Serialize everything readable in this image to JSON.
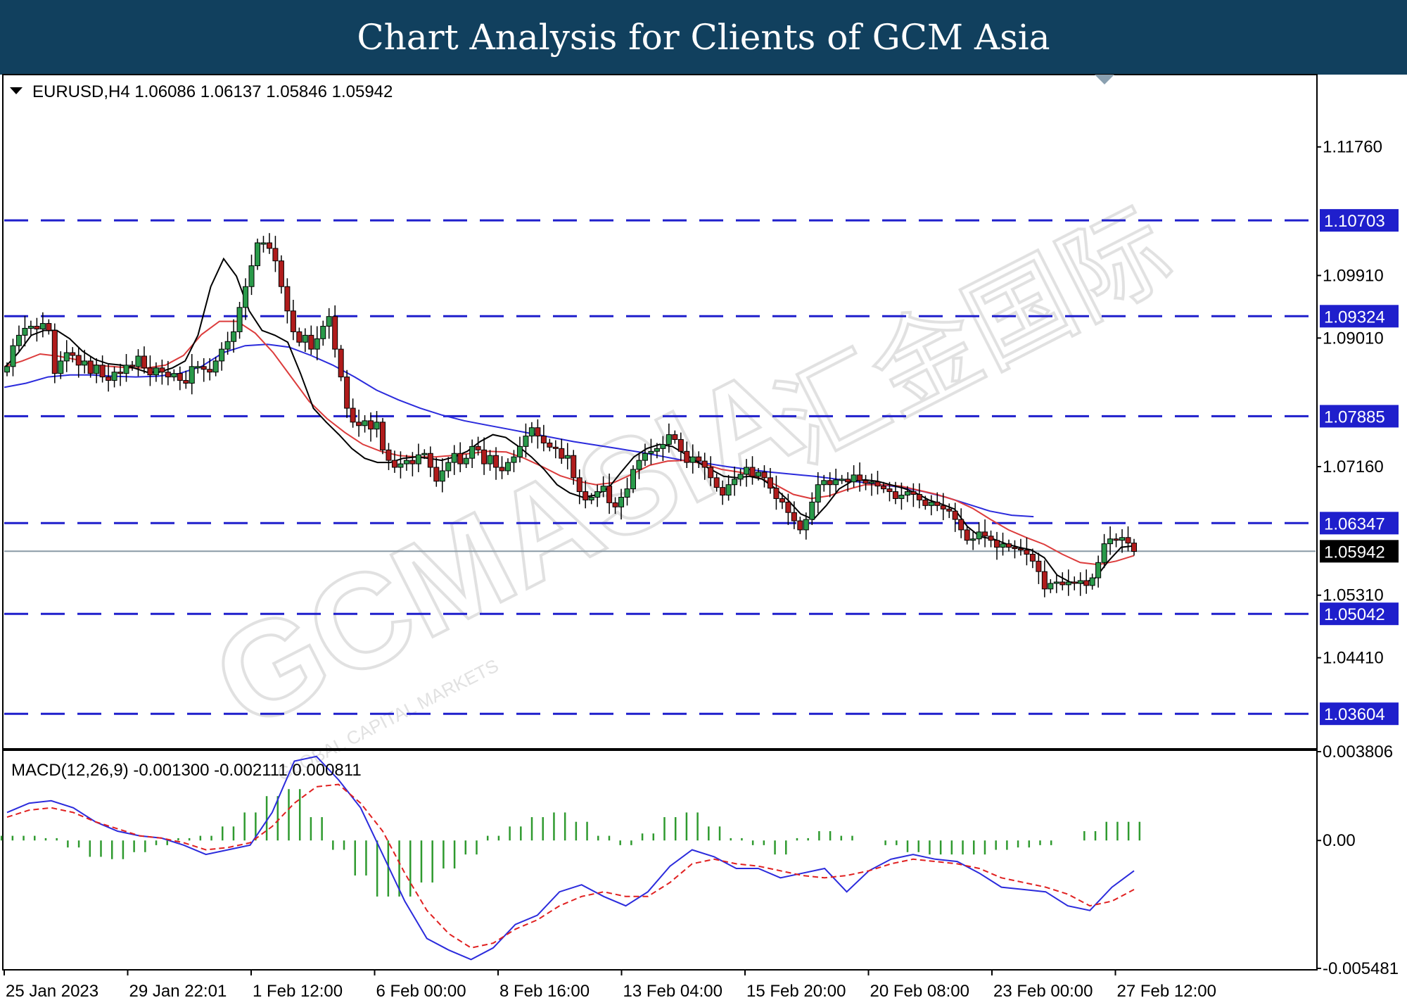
{
  "header": {
    "title": "Chart Analysis for Clients of GCM Asia"
  },
  "colors": {
    "header_bg": "#11405e",
    "level_line": "#1f1fcc",
    "level_tag": "#1f1fcc",
    "current_tag": "#000000",
    "ma_fast": "#000000",
    "ma_mid": "#dc3c3c",
    "ma_slow": "#2b2bdc",
    "macd_line": "#2b2bdc",
    "signal_line": "#e02020",
    "hist_bar": "#2f9a2f",
    "bull_candle": "#2a9a4a",
    "bear_candle": "#b01c1c"
  },
  "watermark": {
    "brand": "GCMASIA",
    "cn": "汇金国际",
    "sub": "GLOBAL CAPITAL MARKETS"
  },
  "chart_data": [
    {
      "type": "candlestick",
      "symbol_info": "EURUSD,H4  1.06086 1.06137 1.05846 1.05942",
      "ylim": [
        1.0312,
        1.1278
      ],
      "y_ticks": [
        "1.11760",
        "1.09910",
        "1.09010",
        "1.07160",
        "1.05310",
        "1.04410"
      ],
      "levels": [
        1.10703,
        1.09324,
        1.07885,
        1.06347,
        1.05042,
        1.03604
      ],
      "level_labels": [
        "1.10703",
        "1.09324",
        "1.07885",
        "1.06347",
        "1.05042",
        "1.03604"
      ],
      "current_price": 1.05942,
      "current_label": "1.05942",
      "x_labels": [
        "25 Jan 2023",
        "29 Jan 22:01",
        "1 Feb 12:00",
        "6 Feb 00:00",
        "8 Feb 16:00",
        "13 Feb 04:00",
        "15 Feb 20:00",
        "20 Feb 08:00",
        "23 Feb 00:00",
        "27 Feb 12:00"
      ],
      "close_series": [
        1.086,
        1.089,
        1.0905,
        1.0915,
        1.0918,
        1.0914,
        1.0922,
        1.0912,
        1.085,
        1.0868,
        1.088,
        1.0876,
        1.0862,
        1.0868,
        1.085,
        1.0862,
        1.0845,
        1.084,
        1.0852,
        1.085,
        1.0862,
        1.086,
        1.0875,
        1.0858,
        1.0848,
        1.0858,
        1.0852,
        1.0845,
        1.085,
        1.084,
        1.0836,
        1.086,
        1.086,
        1.0856,
        1.0852,
        1.0868,
        1.0885,
        1.0896,
        1.091,
        1.0945,
        1.0975,
        1.1005,
        1.1038,
        1.1038,
        1.103,
        1.1012,
        1.0975,
        1.094,
        1.091,
        1.0895,
        1.0905,
        1.0885,
        1.09,
        1.0918,
        1.0932,
        1.0885,
        1.0845,
        1.08,
        1.078,
        1.0775,
        1.0782,
        1.077,
        1.078,
        1.074,
        1.0725,
        1.0715,
        1.072,
        1.0725,
        1.072,
        1.0733,
        1.0735,
        1.0715,
        1.0695,
        1.071,
        1.0722,
        1.0735,
        1.072,
        1.0728,
        1.0745,
        1.074,
        1.072,
        1.0732,
        1.0715,
        1.071,
        1.0722,
        1.073,
        1.0745,
        1.076,
        1.0772,
        1.076,
        1.075,
        1.0744,
        1.0742,
        1.0728,
        1.0732,
        1.07,
        1.068,
        1.0668,
        1.0672,
        1.068,
        1.0688,
        1.0664,
        1.0658,
        1.0672,
        1.0684,
        1.0712,
        1.0725,
        1.0735,
        1.0738,
        1.0742,
        1.0748,
        1.0762,
        1.0755,
        1.0738,
        1.0722,
        1.073,
        1.0724,
        1.0715,
        1.07,
        1.0686,
        1.0675,
        1.069,
        1.0698,
        1.0705,
        1.0715,
        1.0702,
        1.0708,
        1.07,
        1.0685,
        1.067,
        1.0665,
        1.065,
        1.0638,
        1.0625,
        1.064,
        1.0665,
        1.069,
        1.0696,
        1.069,
        1.0697,
        1.0698,
        1.0694,
        1.0704,
        1.0696,
        1.0692,
        1.0694,
        1.0688,
        1.0684,
        1.068,
        1.067,
        1.0675,
        1.068,
        1.0676,
        1.0668,
        1.066,
        1.0665,
        1.066,
        1.0655,
        1.0652,
        1.064,
        1.0625,
        1.061,
        1.0612,
        1.0622,
        1.0616,
        1.061,
        1.06,
        1.0605,
        1.06,
        1.0598,
        1.0596,
        1.059,
        1.058,
        1.0565,
        1.054,
        1.0548,
        1.055,
        1.0546,
        1.055,
        1.0548,
        1.0552,
        1.0545,
        1.0556,
        1.0578,
        1.0605,
        1.0612,
        1.061,
        1.0614,
        1.0606,
        1.0594
      ],
      "ma_fast": [
        1.086,
        1.088,
        1.0905,
        1.0912,
        1.0912,
        1.09,
        1.0882,
        1.087,
        1.0864,
        1.0862,
        1.0858,
        1.0852,
        1.0852,
        1.0858,
        1.0868,
        1.0905,
        1.0975,
        1.1015,
        1.099,
        1.094,
        1.0912,
        1.0905,
        1.0895,
        1.085,
        1.08,
        1.078,
        1.0762,
        1.0742,
        1.0728,
        1.0722,
        1.0722,
        1.0728,
        1.073,
        1.0728,
        1.0725,
        1.073,
        1.0738,
        1.0752,
        1.0762,
        1.0758,
        1.0745,
        1.073,
        1.0712,
        1.069,
        1.0678,
        1.0672,
        1.0675,
        1.0685,
        1.0708,
        1.073,
        1.0742,
        1.0748,
        1.0745,
        1.0734,
        1.0722,
        1.0712,
        1.0702,
        1.07,
        1.0702,
        1.0698,
        1.0685,
        1.0668,
        1.0648,
        1.064,
        1.066,
        1.0684,
        1.0695,
        1.0697,
        1.0695,
        1.069,
        1.0685,
        1.0678,
        1.0668,
        1.0662,
        1.0655,
        1.063,
        1.0615,
        1.0612,
        1.0605,
        1.06,
        1.0596,
        1.0585,
        1.056,
        1.055,
        1.0548,
        1.0556,
        1.058,
        1.06,
        1.0602
      ],
      "ma_mid": [
        1.086,
        1.0868,
        1.0878,
        1.0875,
        1.087,
        1.0862,
        1.086,
        1.0858,
        1.0858,
        1.0862,
        1.0876,
        1.0906,
        1.0925,
        1.0925,
        1.0908,
        1.088,
        1.0845,
        1.081,
        1.0785,
        1.0765,
        1.0748,
        1.0738,
        1.0732,
        1.073,
        1.073,
        1.0732,
        1.0735,
        1.0738,
        1.0737,
        1.0728,
        1.0716,
        1.0703,
        1.0695,
        1.069,
        1.0693,
        1.0705,
        1.0718,
        1.0724,
        1.0725,
        1.072,
        1.0712,
        1.0708,
        1.0701,
        1.069,
        1.0676,
        1.067,
        1.0674,
        1.0683,
        1.069,
        1.069,
        1.0688,
        1.0682,
        1.0676,
        1.0668,
        1.0656,
        1.064,
        1.0625,
        1.0614,
        1.0604,
        1.059,
        1.0578,
        1.0575,
        1.058,
        1.0588
      ],
      "ma_slow": [
        1.083,
        1.0836,
        1.0845,
        1.0848,
        1.0848,
        1.0846,
        1.0845,
        1.0846,
        1.085,
        1.086,
        1.088,
        1.089,
        1.0892,
        1.0888,
        1.0876,
        1.0862,
        1.0845,
        1.0826,
        1.0812,
        1.08,
        1.079,
        1.0782,
        1.0776,
        1.077,
        1.0764,
        1.0758,
        1.0752,
        1.0747,
        1.0742,
        1.0737,
        1.0731,
        1.0725,
        1.0721,
        1.0716,
        1.0712,
        1.0708,
        1.0705,
        1.0702,
        1.0698,
        1.0694,
        1.069,
        1.0686,
        1.068,
        1.0672,
        1.0662,
        1.0652,
        1.0646,
        1.0644
      ],
      "ma_slow_end_x_frac": 0.785
    },
    {
      "type": "macd",
      "title": "MACD(12,26,9) -0.001300 -0.002111 0.000811",
      "ylim": [
        -0.005481,
        0.003806
      ],
      "y_ticks": [
        "0.003806",
        "0.00",
        "-0.005481"
      ],
      "macd": [
        0.0012,
        0.0016,
        0.0017,
        0.0014,
        0.0008,
        0.0004,
        0.0002,
        0.0001,
        -0.0002,
        -0.0006,
        -0.0004,
        -0.0002,
        0.0012,
        0.0034,
        0.0036,
        0.0026,
        0.0014,
        -0.0006,
        -0.0026,
        -0.0042,
        -0.0047,
        -0.0051,
        -0.0046,
        -0.0036,
        -0.0032,
        -0.0022,
        -0.0019,
        -0.0024,
        -0.0028,
        -0.0022,
        -0.0011,
        -0.0004,
        -0.0007,
        -0.0012,
        -0.0012,
        -0.0016,
        -0.0014,
        -0.0012,
        -0.0022,
        -0.0013,
        -0.0008,
        -0.0006,
        -0.0008,
        -0.0009,
        -0.0014,
        -0.002,
        -0.0021,
        -0.0022,
        -0.0028,
        -0.003,
        -0.002,
        -0.0013
      ],
      "signal": [
        0.001,
        0.0013,
        0.0014,
        0.0012,
        0.0008,
        0.0005,
        0.0002,
        0.0001,
        -0.0001,
        -0.0004,
        -0.0003,
        -0.0001,
        0.0006,
        0.0016,
        0.0023,
        0.0024,
        0.0016,
        0.0004,
        -0.0014,
        -0.003,
        -0.004,
        -0.0046,
        -0.0044,
        -0.0038,
        -0.0034,
        -0.0028,
        -0.0024,
        -0.0022,
        -0.0024,
        -0.0024,
        -0.0018,
        -0.001,
        -0.0008,
        -0.001,
        -0.0011,
        -0.0013,
        -0.0015,
        -0.0016,
        -0.0015,
        -0.0013,
        -0.001,
        -0.0008,
        -0.0009,
        -0.001,
        -0.0012,
        -0.0016,
        -0.0018,
        -0.002,
        -0.0023,
        -0.0028,
        -0.0026,
        -0.0021
      ],
      "histogram": [
        0.0002,
        0.0002,
        0.0001,
        -0.0003,
        -0.0007,
        -0.0008,
        -0.0005,
        -0.0002,
        0.0001,
        0.0002,
        0.0006,
        0.0012,
        0.0019,
        0.0022,
        0.001,
        -0.0004,
        -0.0015,
        -0.0024,
        -0.0024,
        -0.0018,
        -0.0012,
        -0.0006,
        0.0002,
        0.0006,
        0.001,
        0.0012,
        0.0008,
        0.0002,
        -0.0002,
        0.0003,
        0.001,
        0.0012,
        0.0006,
        0.0001,
        -0.0002,
        -0.0006,
        0.0001,
        0.0004,
        0.0002,
        0.0,
        -0.0002,
        -0.0005,
        -0.0006,
        -0.0006,
        -0.0006,
        -0.0004,
        -0.0003,
        -0.0002,
        0.0,
        0.0004,
        0.0008,
        0.0008
      ]
    }
  ]
}
